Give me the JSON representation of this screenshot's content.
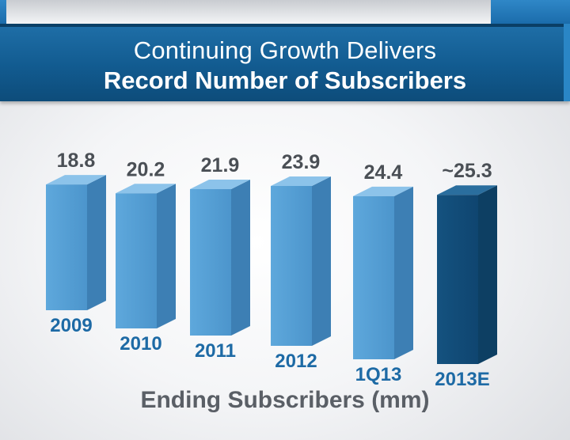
{
  "title": {
    "line1": "Continuing Growth Delivers",
    "line2": "Record Number of Subscribers"
  },
  "colors": {
    "bar_front": "#5ea8dc",
    "bar_side": "#3d7fb4",
    "bar_top": "#8cc3ea",
    "highlight_front": "#14527f",
    "highlight_side": "#0d3f63",
    "highlight_top": "#2a6e9e",
    "value_text": "#4a4f55",
    "category_text": "#1d6aa5"
  },
  "chart_data": {
    "type": "bar",
    "categories": [
      "2009",
      "2010",
      "2011",
      "2012",
      "1Q13",
      "2013E"
    ],
    "values": [
      18.8,
      20.2,
      21.9,
      23.9,
      24.4,
      25.3
    ],
    "value_labels": [
      "18.8",
      "20.2",
      "21.9",
      "23.9",
      "24.4",
      "~25.3"
    ],
    "highlighted_category": "2013E",
    "xlabel": "Ending Subscribers (mm)",
    "ylabel": "",
    "ylim": [
      0,
      28
    ],
    "grid": false,
    "legend": "none"
  }
}
